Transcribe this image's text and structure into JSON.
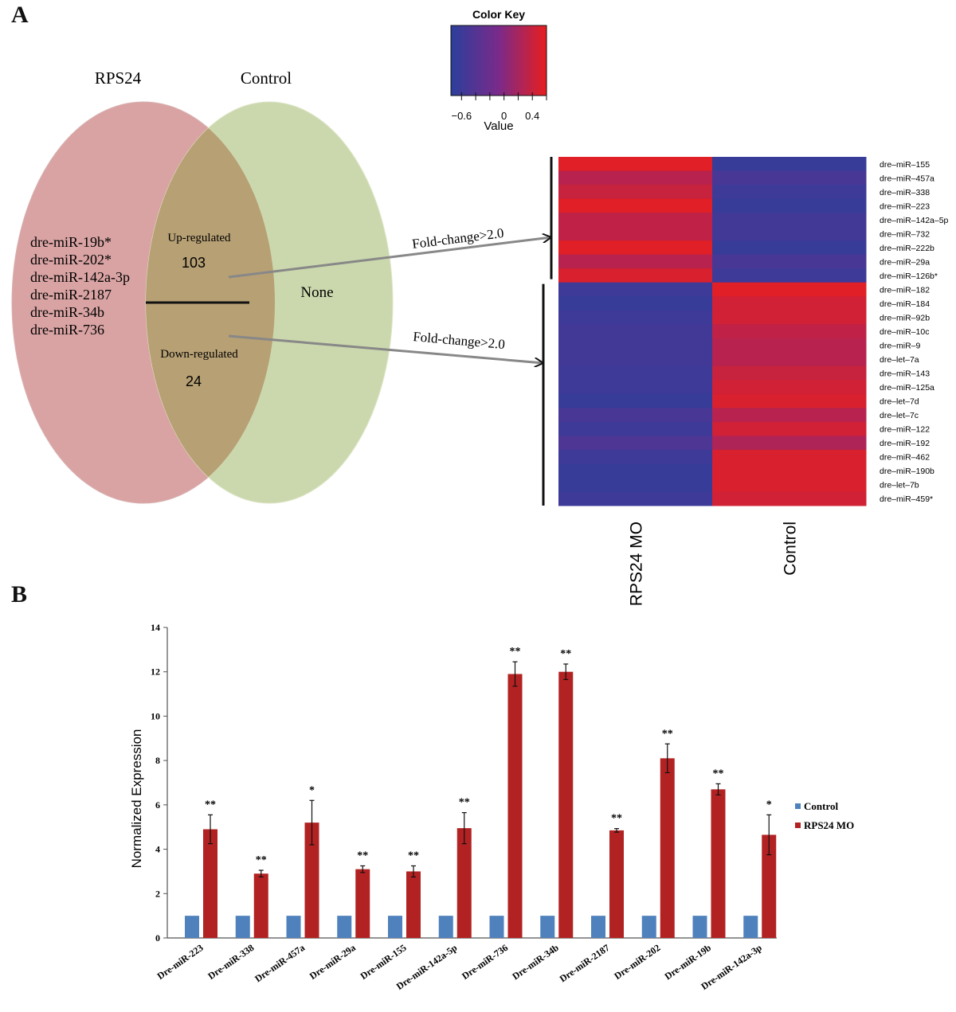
{
  "panel_a": {
    "letter": "A",
    "venn": {
      "left_label": "RPS24",
      "right_label": "Control",
      "left_only_items": [
        "dre-miR-19b*",
        "dre-miR-202*",
        "dre-miR-142a-3p",
        "dre-miR-2187",
        "dre-miR-34b",
        "dre-miR-736"
      ],
      "up_label": "Up-regulated",
      "up_count": "103",
      "down_label": "Down-regulated",
      "down_count": "24",
      "right_only": "None",
      "arrow_label_up": "Fold-change>2.0",
      "arrow_label_down": "Fold-change>2.0",
      "colors": {
        "left": "#d9a3a3",
        "right": "#cbd8ad",
        "overlap": "#b7a074"
      }
    },
    "color_key": {
      "title": "Color Key",
      "xlabel": "Value",
      "ticks": [
        "−0.6",
        "0",
        "0.4"
      ],
      "tick_values": [
        -0.6,
        0,
        0.4
      ],
      "range": [
        -0.75,
        0.6
      ],
      "low_color": "#2b3f9c",
      "mid_color": "#7a2a8a",
      "high_color": "#e81e1e"
    }
  },
  "chart_data": [
    {
      "type": "heatmap",
      "columns": [
        "RPS24 MO",
        "Control"
      ],
      "rows": [
        "dre–miR–155",
        "dre–miR–457a",
        "dre–miR–338",
        "dre–miR–223",
        "dre–miR–142a–5p",
        "dre–miR–732",
        "dre–miR–222b",
        "dre–miR–29a",
        "dre–miR–126b*",
        "dre–miR–182",
        "dre–miR–184",
        "dre–miR–92b",
        "dre–miR–10c",
        "dre–miR–9",
        "dre–let–7a",
        "dre–miR–143",
        "dre–miR–125a",
        "dre–let–7d",
        "dre–let–7c",
        "dre–miR–122",
        "dre–miR–192",
        "dre–miR–462",
        "dre–miR–190b",
        "dre–let–7b",
        "dre–miR–459*"
      ],
      "values": [
        [
          0.55,
          -0.65
        ],
        [
          0.3,
          -0.5
        ],
        [
          0.4,
          -0.6
        ],
        [
          0.55,
          -0.65
        ],
        [
          0.35,
          -0.55
        ],
        [
          0.35,
          -0.55
        ],
        [
          0.55,
          -0.65
        ],
        [
          0.3,
          -0.5
        ],
        [
          0.5,
          -0.6
        ],
        [
          -0.6,
          0.55
        ],
        [
          -0.65,
          0.45
        ],
        [
          -0.6,
          0.45
        ],
        [
          -0.55,
          0.35
        ],
        [
          -0.55,
          0.3
        ],
        [
          -0.55,
          0.3
        ],
        [
          -0.6,
          0.4
        ],
        [
          -0.6,
          0.45
        ],
        [
          -0.65,
          0.5
        ],
        [
          -0.5,
          0.3
        ],
        [
          -0.6,
          0.45
        ],
        [
          -0.45,
          0.25
        ],
        [
          -0.6,
          0.5
        ],
        [
          -0.65,
          0.5
        ],
        [
          -0.65,
          0.5
        ],
        [
          -0.6,
          0.45
        ]
      ],
      "up_group_size": 9
    },
    {
      "type": "bar",
      "panel": "B",
      "ylabel": "Normalized Expression",
      "ylim": [
        0,
        14
      ],
      "yticks": [
        0,
        2,
        4,
        6,
        8,
        10,
        12,
        14
      ],
      "categories": [
        "Dre-miR-223",
        "Dre-miR-338",
        "Dre-miR-457a",
        "Dre-miR-29a",
        "Dre-miR-155",
        "Dre-miR-142a-5p",
        "Dre-miR-736",
        "Dre-miR-34b",
        "Dre-miR-2187",
        "Dre-miR-202",
        "Dre-miR-19b",
        "Dre-miR-142a-3p"
      ],
      "series": [
        {
          "name": "Control",
          "color": "#4f81bd",
          "values": [
            1,
            1,
            1,
            1,
            1,
            1,
            1,
            1,
            1,
            1,
            1,
            1
          ]
        },
        {
          "name": "RPS24 MO",
          "color": "#b22222",
          "values": [
            4.9,
            2.9,
            5.2,
            3.1,
            3.0,
            4.95,
            11.9,
            12.0,
            4.85,
            8.1,
            6.7,
            4.65
          ],
          "errors": [
            0.65,
            0.15,
            1.0,
            0.15,
            0.25,
            0.7,
            0.55,
            0.35,
            0.08,
            0.65,
            0.25,
            0.9
          ]
        }
      ],
      "significance": [
        "**",
        "**",
        "*",
        "**",
        "**",
        "**",
        "**",
        "**",
        "**",
        "**",
        "**",
        "*"
      ],
      "legend": "right",
      "grid": false
    }
  ],
  "panel_b": {
    "letter": "B"
  }
}
